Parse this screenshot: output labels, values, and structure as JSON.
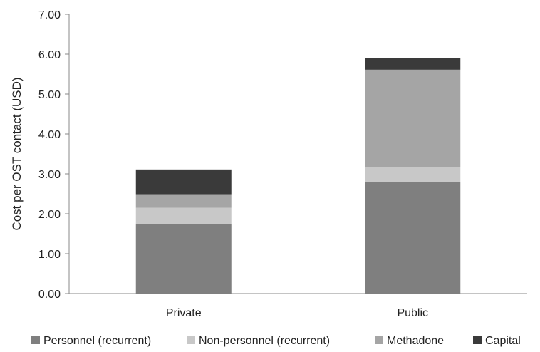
{
  "chart_data": {
    "type": "bar",
    "stacked": true,
    "categories": [
      "Private",
      "Public"
    ],
    "series": [
      {
        "name": "Personnel (recurrent)",
        "color": "#7f7f7f",
        "values": [
          1.75,
          2.8
        ]
      },
      {
        "name": "Non-personnel (recurrent)",
        "color": "#c8c8c8",
        "values": [
          0.4,
          0.36
        ]
      },
      {
        "name": "Methadone",
        "color": "#a5a5a5",
        "values": [
          0.34,
          2.45
        ]
      },
      {
        "name": "Capital",
        "color": "#3a3a3a",
        "values": [
          0.62,
          0.29
        ]
      }
    ],
    "ylabel": "Cost per OST contact (USD)",
    "xlabel": "",
    "ylim": [
      0,
      7
    ],
    "yticks": [
      "0.00",
      "1.00",
      "2.00",
      "3.00",
      "4.00",
      "5.00",
      "6.00",
      "7.00"
    ],
    "grid": false,
    "legend": "bottom"
  }
}
